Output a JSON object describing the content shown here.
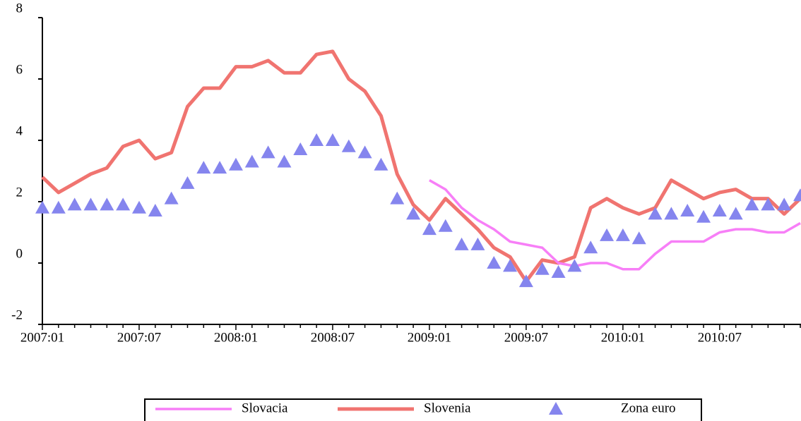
{
  "chart_data": {
    "type": "line",
    "categories": [
      "2007:01",
      null,
      null,
      null,
      null,
      null,
      "2007:07",
      null,
      null,
      null,
      null,
      null,
      "2008:01",
      null,
      null,
      null,
      null,
      null,
      "2008:07",
      null,
      null,
      null,
      null,
      null,
      "2009:01",
      null,
      null,
      null,
      null,
      null,
      "2009:07",
      null,
      null,
      null,
      null,
      null,
      "2010:01",
      null,
      null,
      null,
      null,
      null,
      "2010:07",
      null,
      null,
      null,
      null,
      null
    ],
    "series": [
      {
        "name": "Slovacia",
        "color": "#f77ff7",
        "mode": "line",
        "values": [
          null,
          null,
          null,
          null,
          null,
          null,
          null,
          null,
          null,
          null,
          null,
          null,
          null,
          null,
          null,
          null,
          null,
          null,
          null,
          null,
          null,
          null,
          null,
          null,
          2.7,
          2.4,
          1.8,
          1.4,
          1.1,
          0.7,
          0.6,
          0.5,
          0.0,
          -0.1,
          0.0,
          0.0,
          -0.2,
          -0.2,
          0.3,
          0.7,
          0.7,
          0.7,
          1.0,
          1.1,
          1.1,
          1.0,
          1.0,
          1.3
        ]
      },
      {
        "name": "Slovenia",
        "color": "#f07470",
        "mode": "line",
        "values": [
          2.8,
          2.3,
          2.6,
          2.9,
          3.1,
          3.8,
          4.0,
          3.4,
          3.6,
          5.1,
          5.7,
          5.7,
          6.4,
          6.4,
          6.6,
          6.2,
          6.2,
          6.8,
          6.9,
          6.0,
          5.6,
          4.8,
          2.9,
          1.9,
          1.4,
          2.1,
          1.6,
          1.1,
          0.5,
          0.2,
          -0.6,
          0.1,
          0.0,
          0.2,
          1.8,
          2.1,
          1.8,
          1.6,
          1.8,
          2.7,
          2.4,
          2.1,
          2.3,
          2.4,
          2.1,
          2.1,
          1.6,
          2.1
        ]
      },
      {
        "name": "Zona euro",
        "color": "#8585ee",
        "mode": "markers",
        "values": [
          1.8,
          1.8,
          1.9,
          1.9,
          1.9,
          1.9,
          1.8,
          1.7,
          2.1,
          2.6,
          3.1,
          3.1,
          3.2,
          3.3,
          3.6,
          3.3,
          3.7,
          4.0,
          4.0,
          3.8,
          3.6,
          3.2,
          2.1,
          1.6,
          1.1,
          1.2,
          0.6,
          0.6,
          0.0,
          -0.1,
          -0.6,
          -0.2,
          -0.3,
          -0.1,
          0.5,
          0.9,
          0.9,
          0.8,
          1.6,
          1.6,
          1.7,
          1.5,
          1.7,
          1.6,
          1.9,
          1.9,
          1.9,
          2.2
        ]
      }
    ],
    "ylim": [
      -2,
      8
    ],
    "yticks": [
      -2,
      0,
      2,
      4,
      6,
      8
    ],
    "grid": false,
    "legend": "bottom"
  }
}
